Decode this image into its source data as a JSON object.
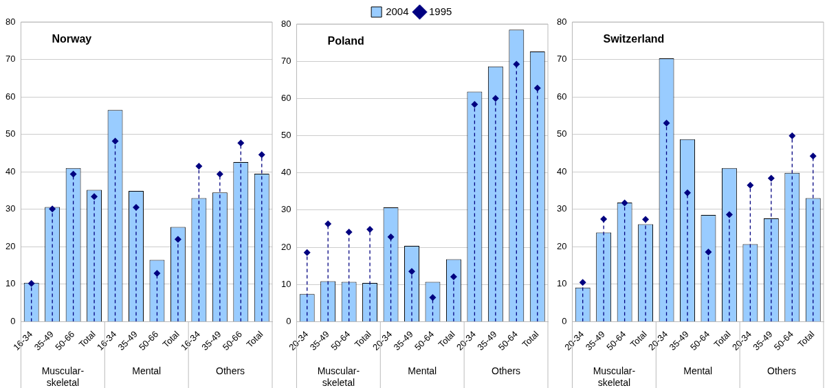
{
  "chart_data": [
    {
      "type": "bar",
      "title": "Norway",
      "categories": [
        "16-34",
        "35-49",
        "50-66",
        "Total",
        "16-34",
        "35-49",
        "50-66",
        "Total",
        "16-34",
        "35-49",
        "50-66",
        "Total"
      ],
      "annotations": [
        "Muscular-skeletal",
        "Mental",
        "Others"
      ],
      "series": [
        {
          "type": "bar",
          "color": "#99ccff",
          "values": [
            10.4,
            30.6,
            41.0,
            35.2,
            56.5,
            34.9,
            16.5,
            25.3,
            33.0,
            34.5,
            42.6,
            39.5
          ]
        },
        {
          "type": "lollipop",
          "color": "#000080",
          "marker": "diamond",
          "line_style": "dashed",
          "values": [
            10.2,
            30.1,
            39.4,
            33.4,
            48.2,
            30.5,
            12.9,
            22.0,
            41.5,
            39.4,
            47.7,
            44.6
          ]
        }
      ],
      "ylim": [
        0,
        80
      ],
      "yticks": [
        0,
        10,
        20,
        30,
        40,
        50,
        60,
        70,
        80
      ],
      "grid": "y",
      "legend": false
    },
    {
      "type": "bar",
      "title": "Poland",
      "categories": [
        "20-34",
        "35-49",
        "50-64",
        "Total",
        "20-34",
        "35-49",
        "50-64",
        "Total",
        "20-34",
        "35-49",
        "50-64",
        "Total"
      ],
      "annotations": [
        "Muscular-skeletal",
        "Mental",
        "Others"
      ],
      "series": [
        {
          "type": "bar",
          "name": "2004",
          "color": "#99ccff",
          "values": [
            7.4,
            10.9,
            10.7,
            10.4,
            30.7,
            20.4,
            10.7,
            16.8,
            61.8,
            68.6,
            78.5,
            72.6
          ]
        },
        {
          "type": "lollipop",
          "name": "1995",
          "color": "#000080",
          "marker": "diamond",
          "line_style": "dashed",
          "values": [
            18.6,
            26.3,
            24.1,
            24.8,
            22.8,
            13.5,
            6.5,
            12.1,
            58.4,
            60.0,
            69.2,
            62.8
          ]
        }
      ],
      "ylim": [
        0,
        80
      ],
      "yticks": [
        0,
        10,
        20,
        30,
        40,
        50,
        60,
        70,
        80
      ],
      "grid": "y",
      "legend": "top"
    },
    {
      "type": "bar",
      "title": "Switzerland",
      "categories": [
        "20-34",
        "35-49",
        "50-64",
        "Total",
        "20-34",
        "35-49",
        "50-64",
        "Total",
        "20-34",
        "35-49",
        "50-64",
        "Total"
      ],
      "annotations": [
        "Muscular-skeletal",
        "Mental",
        "Others"
      ],
      "series": [
        {
          "type": "bar",
          "color": "#99ccff",
          "values": [
            9.1,
            23.8,
            31.8,
            26.0,
            70.3,
            48.7,
            28.5,
            41.0,
            20.7,
            27.6,
            39.7,
            33.0
          ]
        },
        {
          "type": "lollipop",
          "color": "#000080",
          "marker": "diamond",
          "line_style": "dashed",
          "values": [
            10.5,
            27.4,
            31.7,
            27.3,
            53.0,
            34.4,
            18.6,
            28.6,
            36.4,
            38.3,
            49.6,
            44.2
          ]
        }
      ],
      "ylim": [
        0,
        80
      ],
      "yticks": [
        0,
        10,
        20,
        30,
        40,
        50,
        60,
        70,
        80
      ],
      "grid": "y",
      "legend": false
    }
  ]
}
